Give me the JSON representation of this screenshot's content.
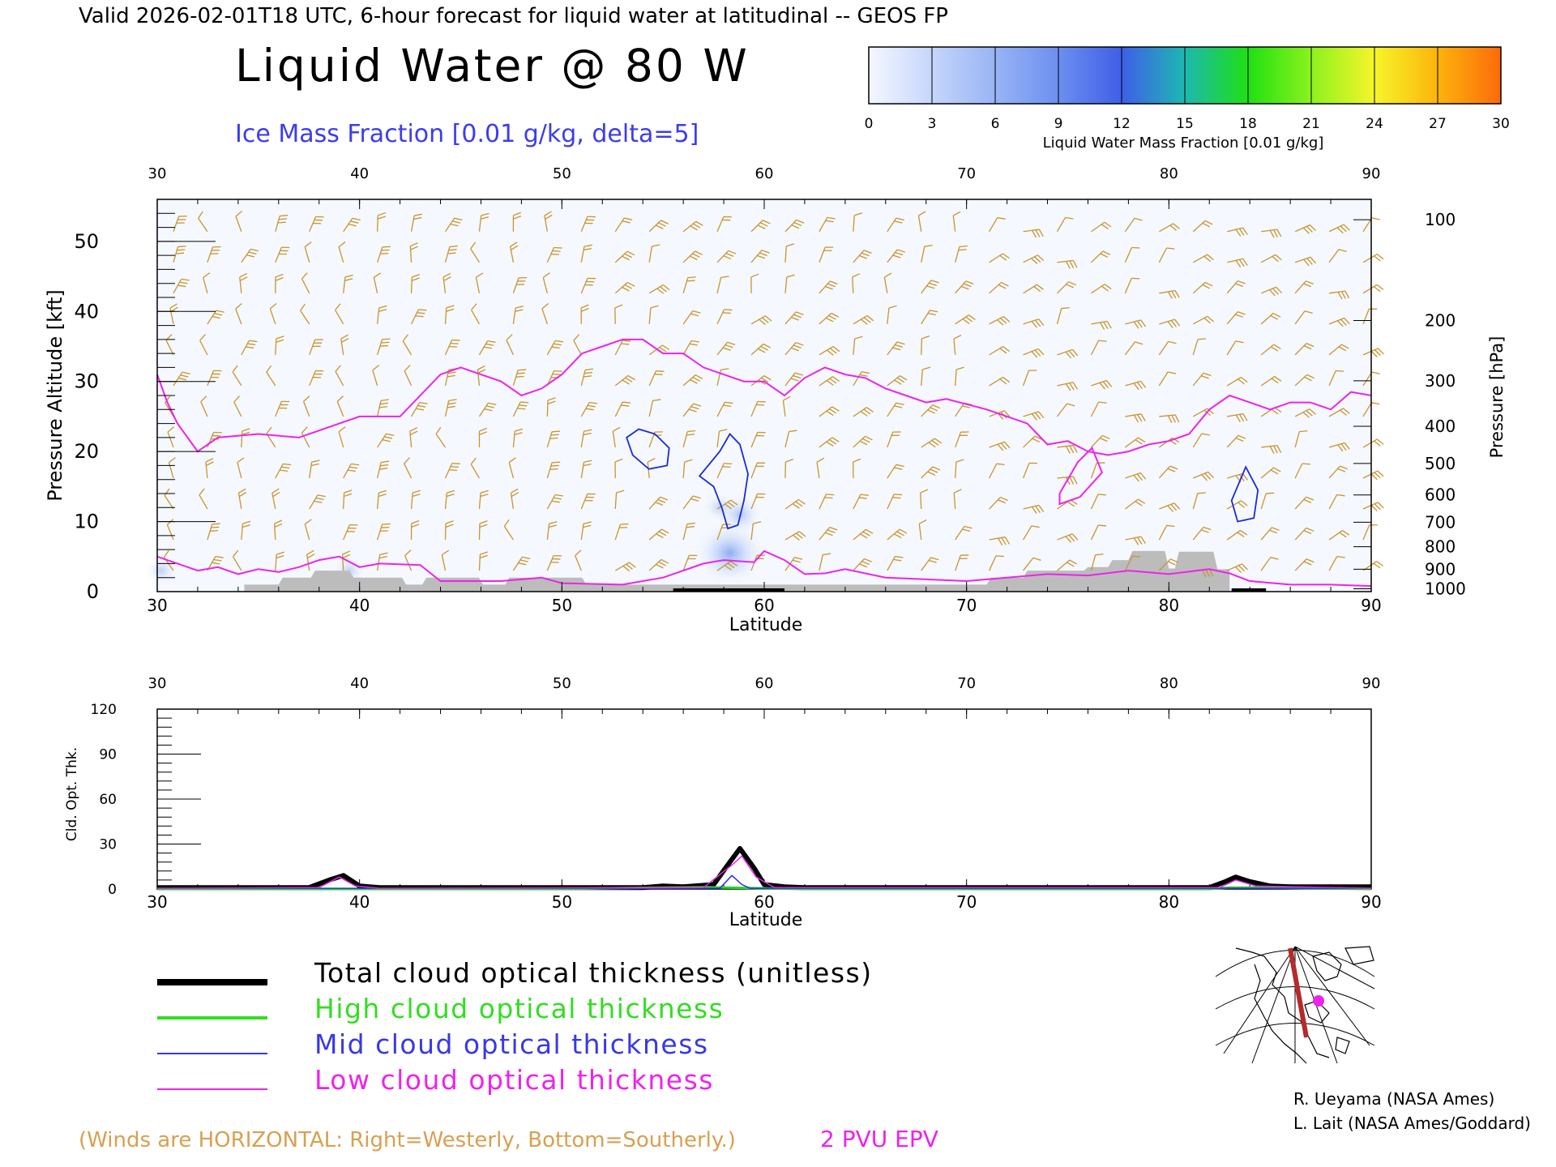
{
  "header": {
    "valid_line": "Valid 2026-02-01T18 UTC, 6-hour forecast for liquid water at latitudinal -- GEOS FP",
    "title": "Liquid Water @ 80 W",
    "subtitle": "Ice Mass Fraction [0.01 g/kg, delta=5]"
  },
  "colorbar": {
    "label": "Liquid Water Mass Fraction [0.01 g/kg]",
    "ticks": [
      "0",
      "3",
      "6",
      "9",
      "12",
      "15",
      "18",
      "21",
      "24",
      "27",
      "30"
    ],
    "colors": [
      "#f4f7ff",
      "#c6d6fb",
      "#98b4f5",
      "#6c8ff0",
      "#3f5ee8",
      "#1db8b0",
      "#1fe012",
      "#8cf21e",
      "#f6f52a",
      "#fcb40c",
      "#fd6a0a"
    ]
  },
  "chart_data": [
    {
      "type": "heatmap",
      "title": "Liquid Water @ 80 W",
      "xlabel": "Latitude",
      "ylabel": "Pressure Altitude [kft]",
      "ylabel_right": "Pressure [hPa]",
      "xlim": [
        30,
        90
      ],
      "ylim": [
        0,
        56
      ],
      "x_ticks": [
        "30",
        "40",
        "50",
        "60",
        "70",
        "80",
        "90"
      ],
      "y_ticks": [
        "0",
        "10",
        "20",
        "30",
        "40",
        "50"
      ],
      "pressure_ticks": [
        {
          "label": "100",
          "kft": 53.1
        },
        {
          "label": "200",
          "kft": 38.7
        },
        {
          "label": "300",
          "kft": 30.1
        },
        {
          "label": "400",
          "kft": 23.6
        },
        {
          "label": "500",
          "kft": 18.3
        },
        {
          "label": "600",
          "kft": 13.8
        },
        {
          "label": "700",
          "kft": 9.9
        },
        {
          "label": "800",
          "kft": 6.4
        },
        {
          "label": "900",
          "kft": 3.2
        },
        {
          "label": "1000",
          "kft": 0.4
        }
      ],
      "epv_2pvu_kft": [
        [
          30,
          31
        ],
        [
          30.5,
          27
        ],
        [
          31,
          24
        ],
        [
          32,
          20
        ],
        [
          33,
          22
        ],
        [
          35,
          22.5
        ],
        [
          37,
          22
        ],
        [
          39,
          24
        ],
        [
          40,
          25
        ],
        [
          42,
          25
        ],
        [
          44,
          31
        ],
        [
          45,
          32
        ],
        [
          47,
          30
        ],
        [
          48,
          28
        ],
        [
          49,
          29
        ],
        [
          50,
          31
        ],
        [
          51,
          34
        ],
        [
          52,
          35
        ],
        [
          53,
          36
        ],
        [
          54,
          36
        ],
        [
          55,
          34
        ],
        [
          56,
          34
        ],
        [
          57,
          32
        ],
        [
          58,
          31
        ],
        [
          59,
          30
        ],
        [
          60,
          30
        ],
        [
          61,
          28
        ],
        [
          62,
          30.5
        ],
        [
          63,
          32
        ],
        [
          64,
          31
        ],
        [
          65,
          30.5
        ],
        [
          66,
          29
        ],
        [
          67,
          28
        ],
        [
          68,
          27
        ],
        [
          69,
          27.5
        ],
        [
          71,
          26
        ],
        [
          72,
          25
        ],
        [
          73,
          24
        ],
        [
          74,
          21
        ],
        [
          75,
          21.5
        ],
        [
          76,
          20
        ],
        [
          77,
          19.5
        ],
        [
          78,
          20
        ],
        [
          79,
          21
        ],
        [
          80,
          21.5
        ],
        [
          81,
          22.5
        ],
        [
          82,
          26
        ],
        [
          83,
          28
        ],
        [
          84,
          27
        ],
        [
          85,
          26
        ],
        [
          86,
          27
        ],
        [
          87,
          27
        ],
        [
          88,
          26
        ],
        [
          89,
          28.5
        ],
        [
          90,
          28
        ]
      ],
      "ice_contours_5": [
        [
          [
            53.2,
            22
          ],
          [
            53.8,
            23.2
          ],
          [
            54.6,
            22.5
          ],
          [
            55.3,
            20.5
          ],
          [
            55.2,
            18
          ],
          [
            54.3,
            17.5
          ],
          [
            53.5,
            19.5
          ],
          [
            53.2,
            22
          ]
        ],
        [
          [
            56.8,
            16.5
          ],
          [
            57.8,
            20
          ],
          [
            58.3,
            22.5
          ],
          [
            58.8,
            21
          ],
          [
            59.2,
            16.8
          ],
          [
            59.0,
            13
          ],
          [
            58.7,
            9.5
          ],
          [
            58.2,
            9
          ],
          [
            57.9,
            12
          ],
          [
            57.5,
            15
          ],
          [
            56.8,
            16.5
          ]
        ],
        [
          [
            83.1,
            13
          ],
          [
            83.8,
            17.8
          ],
          [
            84.4,
            14.5
          ],
          [
            84.2,
            10.5
          ],
          [
            83.4,
            10
          ],
          [
            83.1,
            13
          ]
        ]
      ],
      "low_epv_loops": [
        [
          [
            74.6,
            14
          ],
          [
            75.5,
            18.5
          ],
          [
            76.2,
            20.5
          ],
          [
            76.7,
            17
          ],
          [
            75.6,
            13.5
          ],
          [
            74.6,
            12.5
          ],
          [
            74.6,
            14
          ]
        ]
      ],
      "terrain_kft": [
        [
          34.3,
          1
        ],
        [
          36,
          1
        ],
        [
          36.2,
          2
        ],
        [
          37.6,
          2
        ],
        [
          37.8,
          3
        ],
        [
          39.5,
          3
        ],
        [
          39.7,
          2
        ],
        [
          42.1,
          2
        ],
        [
          42.3,
          1
        ],
        [
          43.1,
          1
        ],
        [
          43.3,
          2
        ],
        [
          45.9,
          2
        ],
        [
          46.1,
          1
        ],
        [
          47.2,
          1
        ],
        [
          47.4,
          2
        ],
        [
          51,
          2
        ],
        [
          51.2,
          1
        ],
        [
          52,
          1
        ],
        [
          70,
          1
        ],
        [
          71,
          1
        ],
        [
          71.2,
          2
        ],
        [
          72.8,
          2
        ],
        [
          73,
          3
        ],
        [
          75.8,
          3
        ],
        [
          76,
          3.5
        ],
        [
          77,
          3.5
        ],
        [
          77.2,
          4.5
        ],
        [
          78,
          4.5
        ],
        [
          78.2,
          5.8
        ],
        [
          79.8,
          5.8
        ],
        [
          80,
          3.3
        ],
        [
          80.3,
          3.3
        ],
        [
          80.5,
          5.7
        ],
        [
          82.2,
          5.7
        ],
        [
          82.4,
          3.2
        ],
        [
          83,
          3.2
        ]
      ],
      "surface_marks": [
        [
          55.5,
          61.0
        ],
        [
          83.1,
          84.8
        ]
      ],
      "liquid_water_patches": [
        {
          "lat": 58.3,
          "kft": 5.5,
          "value": 4
        },
        {
          "lat": 58.8,
          "kft": 11,
          "value": 2
        },
        {
          "lat": 57.8,
          "kft": 12,
          "value": 1
        },
        {
          "lat": 39.5,
          "kft": 3,
          "value": 1
        },
        {
          "lat": 30.2,
          "kft": 3,
          "value": 1
        }
      ]
    },
    {
      "type": "line",
      "xlabel": "Latitude",
      "ylabel": "Cld. Opt. Thk.",
      "xlim": [
        30,
        90
      ],
      "ylim": [
        0,
        120
      ],
      "x_ticks": [
        "30",
        "40",
        "50",
        "60",
        "70",
        "80",
        "90"
      ],
      "y_ticks": [
        "0",
        "30",
        "60",
        "90",
        "120"
      ],
      "series": [
        {
          "name": "Total cloud optical thickness (unitless)",
          "color": "#000000",
          "width": 6,
          "points": [
            [
              30,
              1
            ],
            [
              37.5,
              1
            ],
            [
              38.5,
              6
            ],
            [
              39.2,
              9
            ],
            [
              40,
              2
            ],
            [
              41,
              1
            ],
            [
              54,
              1
            ],
            [
              55,
              2
            ],
            [
              56,
              1.5
            ],
            [
              57.5,
              3
            ],
            [
              58.3,
              18
            ],
            [
              58.8,
              27
            ],
            [
              59.5,
              14
            ],
            [
              60,
              3
            ],
            [
              61,
              1.5
            ],
            [
              62,
              1
            ],
            [
              82,
              1
            ],
            [
              82.8,
              5
            ],
            [
              83.3,
              8
            ],
            [
              84,
              5
            ],
            [
              85,
              2
            ],
            [
              86,
              1.5
            ],
            [
              90,
              1.5
            ]
          ]
        },
        {
          "name": "High cloud optical thickness",
          "color": "#1fdc1f",
          "width": 3,
          "points": [
            [
              30,
              0
            ],
            [
              50,
              0
            ],
            [
              52,
              0.5
            ],
            [
              57,
              1.2
            ],
            [
              60,
              0.5
            ],
            [
              62,
              0
            ],
            [
              82,
              0
            ],
            [
              83,
              1
            ],
            [
              85,
              1
            ],
            [
              87,
              0.5
            ],
            [
              90,
              0
            ]
          ]
        },
        {
          "name": "Mid cloud optical thickness",
          "color": "#2a2af0",
          "width": 1.5,
          "points": [
            [
              30,
              0.5
            ],
            [
              57.8,
              0.5
            ],
            [
              58.4,
              9
            ],
            [
              58.9,
              3
            ],
            [
              59.3,
              0.5
            ],
            [
              90,
              0.5
            ]
          ]
        },
        {
          "name": "Low cloud optical thickness",
          "color": "#ee22ee",
          "width": 1.5,
          "points": [
            [
              30,
              0.5
            ],
            [
              38,
              1
            ],
            [
              39,
              8
            ],
            [
              39.8,
              2
            ],
            [
              41,
              0.5
            ],
            [
              57,
              1
            ],
            [
              58.4,
              16
            ],
            [
              58.9,
              22
            ],
            [
              59.6,
              8
            ],
            [
              60.5,
              1
            ],
            [
              82.5,
              1
            ],
            [
              83.3,
              6
            ],
            [
              84.3,
              2
            ],
            [
              90,
              0.5
            ]
          ]
        }
      ]
    }
  ],
  "legend": [
    {
      "label": "Total cloud optical thickness (unitless)",
      "color": "#000000"
    },
    {
      "label": "High cloud optical thickness",
      "color": "#33dd22"
    },
    {
      "label": "Mid cloud optical thickness",
      "color": "#3838e8"
    },
    {
      "label": "Low cloud optical thickness",
      "color": "#ee22ee"
    }
  ],
  "footer": {
    "winds_note": "(Winds are HORIZONTAL: Right=Westerly, Bottom=Southerly.)",
    "epv_label": "2 PVU EPV",
    "credit_1": "R. Ueyama (NASA Ames)",
    "credit_2": "L. Lait (NASA Ames/Goddard)"
  },
  "colors": {
    "wind": "#c8952e",
    "epv": "#ee22ee",
    "ice": "#1a2ad8",
    "terrain": "#bcbcbc",
    "axis": "#000000"
  }
}
